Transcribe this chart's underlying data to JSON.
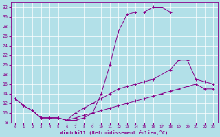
{
  "xlabel": "Windchill (Refroidissement éolien,°C)",
  "bg_color": "#b2e0e8",
  "line_color": "#880088",
  "grid_color": "#ffffff",
  "xmin": -0.5,
  "xmax": 23.5,
  "ymin": 8,
  "ymax": 33,
  "yticks": [
    8,
    10,
    12,
    14,
    16,
    18,
    20,
    22,
    24,
    26,
    28,
    30,
    32
  ],
  "xticks": [
    0,
    1,
    2,
    3,
    4,
    5,
    6,
    7,
    8,
    9,
    10,
    11,
    12,
    13,
    14,
    15,
    16,
    17,
    18,
    19,
    20,
    21,
    22,
    23
  ],
  "curve1_x": [
    2,
    3,
    4,
    5,
    6,
    7,
    8,
    9,
    10,
    11,
    12,
    13,
    14,
    15,
    16,
    17,
    18
  ],
  "curve1_y": [
    10.5,
    9,
    9,
    9,
    8.5,
    8.5,
    9,
    10,
    14,
    20,
    27,
    30.5,
    31,
    31,
    32,
    32,
    31
  ],
  "curve2_x": [
    0,
    1,
    2,
    3,
    4,
    5,
    6,
    7,
    8,
    9,
    10,
    11,
    12,
    13,
    14,
    15,
    16,
    17,
    18,
    19,
    20,
    21,
    22,
    23
  ],
  "curve2_y": [
    13,
    11.5,
    10.5,
    9,
    9,
    9,
    8.5,
    10,
    11,
    12,
    13,
    14,
    15,
    15.5,
    16,
    16.5,
    17,
    18,
    19,
    21,
    21,
    17,
    16.5,
    16
  ],
  "curve3_x": [
    0,
    1,
    2,
    3,
    4,
    5,
    6,
    7,
    8,
    9,
    10,
    11,
    12,
    13,
    14,
    15,
    16,
    17,
    18,
    19,
    20,
    21,
    22,
    23
  ],
  "curve3_y": [
    13,
    11.5,
    10.5,
    9,
    9,
    9,
    8.5,
    9,
    9.5,
    10,
    10.5,
    11,
    11.5,
    12,
    12.5,
    13,
    13.5,
    14,
    14.5,
    15,
    15.5,
    16,
    15,
    15
  ]
}
